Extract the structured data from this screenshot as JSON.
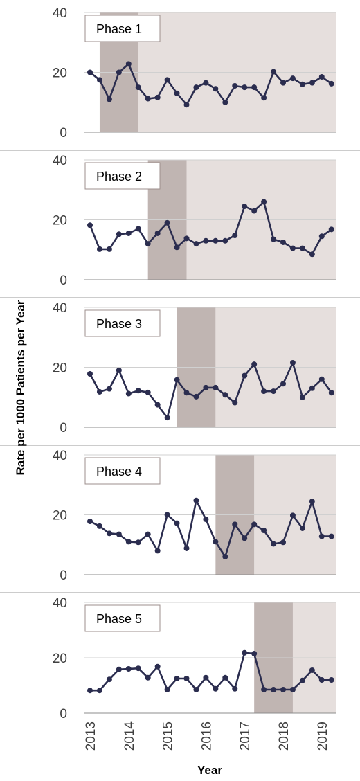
{
  "chart_data": {
    "type": "line",
    "ylabel": "Rate per 1000 Patients per Year",
    "xlabel": "Year",
    "ylim": [
      0,
      40
    ],
    "yticks": [
      "0",
      "20",
      "40"
    ],
    "xticks": [
      "2013",
      "2014",
      "2015",
      "2016",
      "2017",
      "2018",
      "2019"
    ],
    "xlim": [
      2013,
      2019.5
    ],
    "grid": "horizontal",
    "line_color": "#2b2d4f",
    "shade_color": "#e6dfdd",
    "highlight_color": "#c0b5b2",
    "panels": [
      {
        "label": "Phase 1",
        "highlight": [
          2013.25,
          2014.25
        ],
        "shade": [
          2014.25,
          2019.5
        ],
        "x": [
          2013.0,
          2013.25,
          2013.5,
          2013.75,
          2014.0,
          2014.25,
          2014.5,
          2014.75,
          2015.0,
          2015.25,
          2015.5,
          2015.75,
          2016.0,
          2016.25,
          2016.5,
          2016.75,
          2017.0,
          2017.25,
          2017.5,
          2017.75,
          2018.0,
          2018.25,
          2018.5,
          2018.75,
          2019.0,
          2019.25
        ],
        "y": [
          20,
          17.5,
          11,
          20,
          22.8,
          15,
          11.2,
          11.6,
          17.5,
          13,
          9.2,
          15,
          16.5,
          14.5,
          10,
          15.5,
          15,
          15,
          11.5,
          20.2,
          16.5,
          18,
          16,
          16.5,
          18.5,
          16.2
        ]
      },
      {
        "label": "Phase 2",
        "highlight": [
          2014.5,
          2015.5
        ],
        "shade": [
          2015.5,
          2019.5
        ],
        "x": [
          2013.0,
          2013.25,
          2013.5,
          2013.75,
          2014.0,
          2014.25,
          2014.5,
          2014.75,
          2015.0,
          2015.25,
          2015.5,
          2015.75,
          2016.0,
          2016.25,
          2016.5,
          2016.75,
          2017.0,
          2017.25,
          2017.5,
          2017.75,
          2018.0,
          2018.25,
          2018.5,
          2018.75,
          2019.0,
          2019.25
        ],
        "y": [
          18.2,
          10.2,
          10.2,
          15.2,
          15.5,
          17,
          12,
          15.5,
          19,
          10.8,
          13.8,
          12,
          13,
          13,
          13,
          14.8,
          24.5,
          23,
          26,
          13.5,
          12.5,
          10.5,
          10.5,
          8.5,
          14.5,
          16.8
        ]
      },
      {
        "label": "Phase 3",
        "highlight": [
          2015.25,
          2016.25
        ],
        "shade": [
          2016.25,
          2019.5
        ],
        "x": [
          2013.0,
          2013.25,
          2013.5,
          2013.75,
          2014.0,
          2014.25,
          2014.5,
          2014.75,
          2015.0,
          2015.25,
          2015.5,
          2015.75,
          2016.0,
          2016.25,
          2016.5,
          2016.75,
          2017.0,
          2017.25,
          2017.5,
          2017.75,
          2018.0,
          2018.25,
          2018.5,
          2018.75,
          2019.0,
          2019.25
        ],
        "y": [
          17.8,
          11.8,
          12.8,
          19,
          11.2,
          12.2,
          11.6,
          7.5,
          3.2,
          15.8,
          11.5,
          10.2,
          13.2,
          13.2,
          10.8,
          8.2,
          17.2,
          21,
          12,
          12,
          14.5,
          21.5,
          10,
          13,
          16,
          11.5
        ]
      },
      {
        "label": "Phase 4",
        "highlight": [
          2016.25,
          2017.25
        ],
        "shade": [
          2017.25,
          2019.5
        ],
        "x": [
          2013.0,
          2013.25,
          2013.5,
          2013.75,
          2014.0,
          2014.25,
          2014.5,
          2014.75,
          2015.0,
          2015.25,
          2015.5,
          2015.75,
          2016.0,
          2016.25,
          2016.5,
          2016.75,
          2017.0,
          2017.25,
          2017.5,
          2017.75,
          2018.0,
          2018.25,
          2018.5,
          2018.75,
          2019.0,
          2019.25
        ],
        "y": [
          17.8,
          16.2,
          13.8,
          13.5,
          11,
          10.8,
          13.5,
          8,
          20,
          17.2,
          8.8,
          24.8,
          18.5,
          11,
          6,
          16.8,
          12.2,
          16.8,
          14.8,
          10.3,
          10.8,
          19.8,
          15.5,
          24.5,
          12.8,
          12.8
        ]
      },
      {
        "label": "Phase 5",
        "highlight": [
          2017.25,
          2018.25
        ],
        "shade": [
          2018.25,
          2019.5
        ],
        "x": [
          2013.0,
          2013.25,
          2013.5,
          2013.75,
          2014.0,
          2014.25,
          2014.5,
          2014.75,
          2015.0,
          2015.25,
          2015.5,
          2015.75,
          2016.0,
          2016.25,
          2016.5,
          2016.75,
          2017.0,
          2017.25,
          2017.5,
          2017.75,
          2018.0,
          2018.25,
          2018.5,
          2018.75,
          2019.0,
          2019.25
        ],
        "y": [
          8.2,
          8.2,
          12.2,
          15.8,
          16,
          16.2,
          12.8,
          16.8,
          8.5,
          12.5,
          12.5,
          8.5,
          12.8,
          8.8,
          12.8,
          8.8,
          21.8,
          21.5,
          8.5,
          8.5,
          8.5,
          8.5,
          11.8,
          15.5,
          12,
          12
        ]
      }
    ]
  }
}
